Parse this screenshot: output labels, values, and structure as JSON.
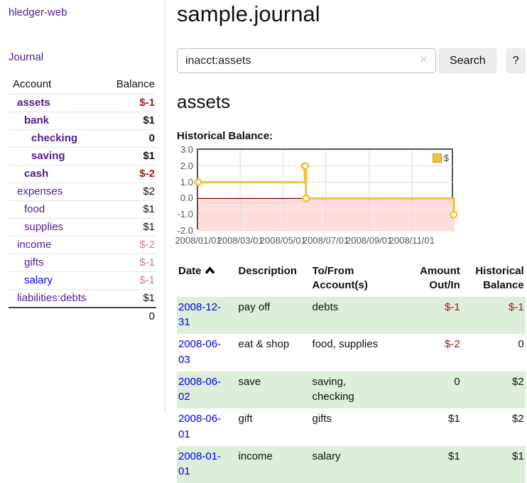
{
  "colors": {
    "link_visited": "#551a8b",
    "link_unvisited": "#0000ee",
    "negative_strong": "#99181a",
    "negative_soft": "#c08181",
    "table_negative": "#8b1a1a",
    "row_stripe_green": "#ddeeda"
  },
  "sidebar": {
    "brand": "hledger-web",
    "journal_label": "Journal",
    "accounts_table": {
      "headers": [
        "Account",
        "Balance"
      ],
      "rows": [
        {
          "name": "assets",
          "indent": 1,
          "bold": true,
          "balance": "$-1",
          "balance_style": "neg-strong",
          "link_style": "visited"
        },
        {
          "name": "bank",
          "indent": 2,
          "bold": true,
          "balance": "$1",
          "balance_style": "pos",
          "link_style": "visited"
        },
        {
          "name": "checking",
          "indent": 3,
          "bold": true,
          "balance": "0",
          "balance_style": "pos",
          "link_style": "visited"
        },
        {
          "name": "saving",
          "indent": 3,
          "bold": true,
          "balance": "$1",
          "balance_style": "pos",
          "link_style": "visited"
        },
        {
          "name": "cash",
          "indent": 2,
          "bold": true,
          "balance": "$-2",
          "balance_style": "neg-strong",
          "link_style": "visited"
        },
        {
          "name": "expenses",
          "indent": 1,
          "bold": false,
          "balance": "$2",
          "balance_style": "pos",
          "link_style": "visited"
        },
        {
          "name": "food",
          "indent": 2,
          "bold": false,
          "balance": "$1",
          "balance_style": "pos",
          "link_style": "visited"
        },
        {
          "name": "supplies",
          "indent": 2,
          "bold": false,
          "balance": "$1",
          "balance_style": "pos",
          "link_style": "visited"
        },
        {
          "name": "income",
          "indent": 1,
          "bold": false,
          "balance": "$-2",
          "balance_style": "neg-soft",
          "link_style": "visited"
        },
        {
          "name": "gifts",
          "indent": 2,
          "bold": false,
          "balance": "$-1",
          "balance_style": "neg-soft",
          "link_style": "visited"
        },
        {
          "name": "salary",
          "indent": 2,
          "bold": false,
          "balance": "$-1",
          "balance_style": "neg-soft",
          "link_style": "unvisited"
        },
        {
          "name": "liabilities:debts",
          "indent": 1,
          "bold": false,
          "balance": "$1",
          "balance_style": "pos",
          "link_style": "visited"
        }
      ],
      "total": "0"
    }
  },
  "header": {
    "title": "sample.journal"
  },
  "search": {
    "value": "inacct:assets",
    "clear_icon": "✕",
    "button_label": "Search",
    "help_label": "?"
  },
  "account_page": {
    "heading": "assets",
    "chart_label": "Historical Balance:"
  },
  "chart_data": {
    "type": "line",
    "step": true,
    "series": [
      {
        "name": "$",
        "color": "#edc240",
        "point_fill": "#ffffff",
        "points": [
          [
            "2008-01-01",
            1
          ],
          [
            "2008-06-01",
            2
          ],
          [
            "2008-06-02",
            2
          ],
          [
            "2008-06-03",
            0
          ],
          [
            "2008-12-31",
            -1
          ]
        ]
      }
    ],
    "xrange": [
      "2008-01-01",
      "2009-01-01"
    ],
    "ylim": [
      -2,
      3
    ],
    "yticks": [
      "3.0",
      "2.0",
      "1.0",
      "0.0",
      "-1.0",
      "-2.0"
    ],
    "xticks": [
      "2008/01/01",
      "2008/03/01",
      "2008/05/01",
      "2008/07/01",
      "2008/09/01",
      "2008/11/01"
    ],
    "grid": true,
    "grid_color": "#dcdcdc",
    "negative_fill": "#ffdddd",
    "zero_line_color": "#8b0000",
    "legend_position": "top-right",
    "legend_label": "$"
  },
  "register_table": {
    "headers": [
      {
        "label": "Date",
        "sort": "asc",
        "align": "left"
      },
      {
        "label": "Description",
        "align": "left"
      },
      {
        "label": "To/From Account(s)",
        "align": "left"
      },
      {
        "label": "Amount Out/In",
        "align": "right"
      },
      {
        "label": "Historical Balance",
        "align": "right"
      }
    ],
    "rows": [
      {
        "date": "2008-12-31",
        "description": "pay off",
        "accounts": "debts",
        "amount": "$-1",
        "amount_negative": true,
        "balance": "$-1",
        "balance_negative": true
      },
      {
        "date": "2008-06-03",
        "description": "eat & shop",
        "accounts": "food, supplies",
        "amount": "$-2",
        "amount_negative": true,
        "balance": "0",
        "balance_negative": false
      },
      {
        "date": "2008-06-02",
        "description": "save",
        "accounts": "saving,\nchecking",
        "amount": "0",
        "amount_negative": false,
        "balance": "$2",
        "balance_negative": false
      },
      {
        "date": "2008-06-01",
        "description": "gift",
        "accounts": "gifts",
        "amount": "$1",
        "amount_negative": false,
        "balance": "$2",
        "balance_negative": false
      },
      {
        "date": "2008-01-01",
        "description": "income",
        "accounts": "salary",
        "amount": "$1",
        "amount_negative": false,
        "balance": "$1",
        "balance_negative": false
      }
    ]
  }
}
